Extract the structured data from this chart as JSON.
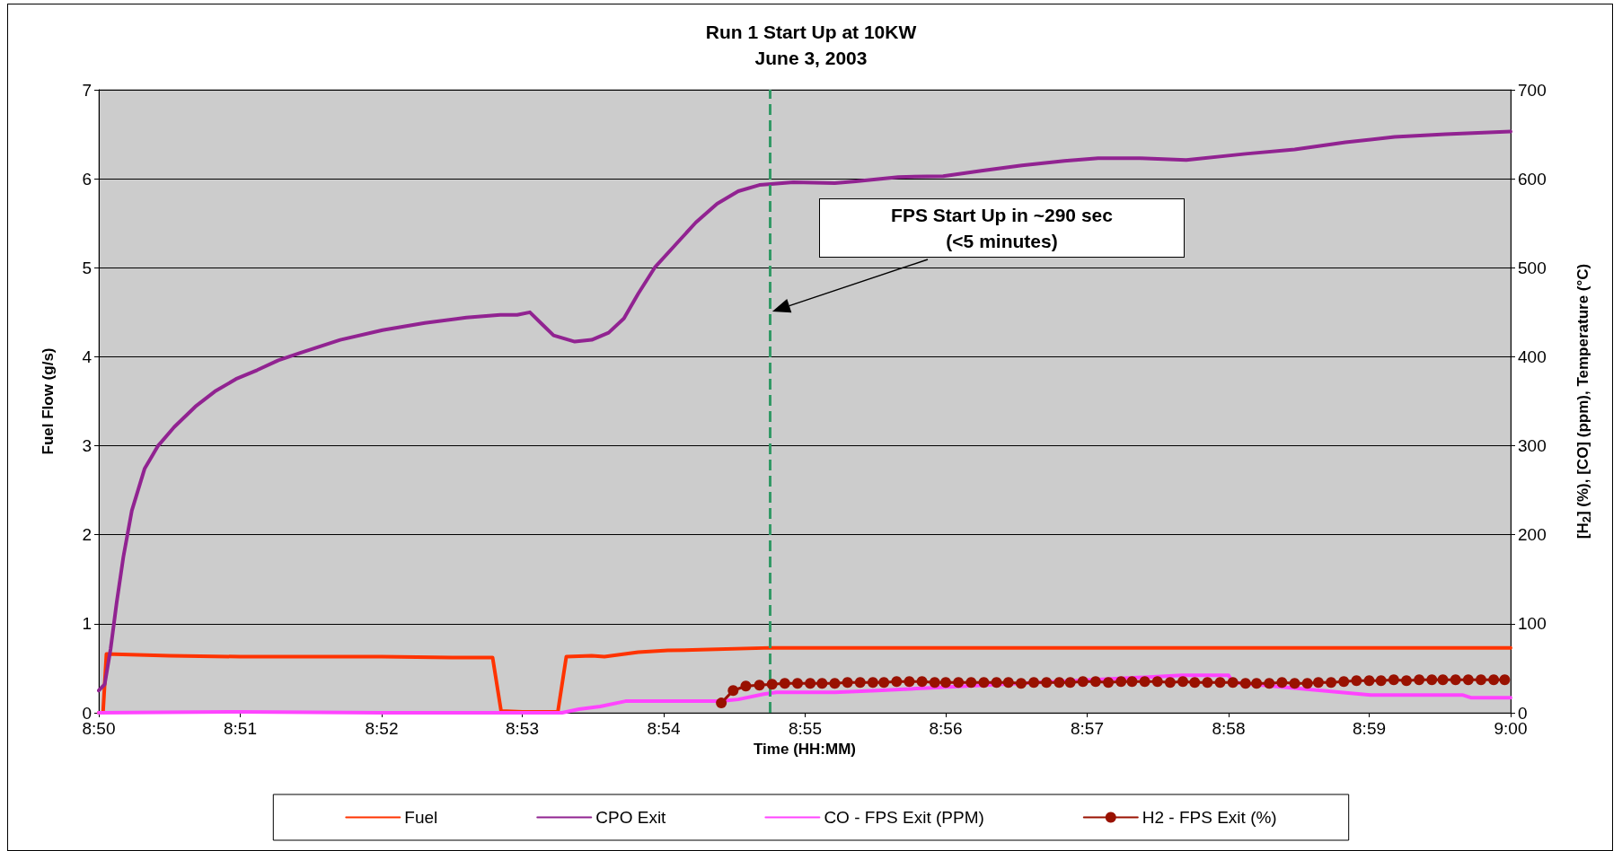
{
  "chart_data": {
    "type": "line",
    "title": "Run 1 Start Up at 10KW",
    "subtitle": "June 3, 2003",
    "xlabel": "Time (HH:MM)",
    "ylabel": "Fuel Flow (g/s)",
    "y2label": "[H$_{2}$] (%), [CO] (ppm), Temperature (°C)",
    "xlim": [
      8.8333,
      9.0
    ],
    "xticks": [
      {
        "value": 8.8333,
        "label": "8:50"
      },
      {
        "value": 8.85,
        "label": "8:51"
      },
      {
        "value": 8.8667,
        "label": "8:52"
      },
      {
        "value": 8.8833,
        "label": "8:53"
      },
      {
        "value": 8.9,
        "label": "8:54"
      },
      {
        "value": 8.9167,
        "label": "8:55"
      },
      {
        "value": 8.9333,
        "label": "8:56"
      },
      {
        "value": 8.95,
        "label": "8:57"
      },
      {
        "value": 8.9667,
        "label": "8:58"
      },
      {
        "value": 8.9833,
        "label": "8:59"
      },
      {
        "value": 9.0,
        "label": "9:00"
      }
    ],
    "ylim": [
      0,
      7
    ],
    "yticks": [
      0,
      1,
      2,
      3,
      4,
      5,
      6,
      7
    ],
    "y2lim": [
      0,
      700
    ],
    "y2ticks": [
      0,
      100,
      200,
      300,
      400,
      500,
      600,
      700
    ],
    "grid": "y",
    "legend": "bottom",
    "marker": "none",
    "line_style": "solid",
    "series": [
      {
        "name": "Fuel",
        "color": "#ff3300",
        "x": [
          8.8333,
          8.8338,
          8.8342,
          8.8417,
          8.85,
          8.8583,
          8.8667,
          8.875,
          8.8798,
          8.8808,
          8.8833,
          8.8875,
          8.8885,
          8.8915,
          8.893,
          8.897,
          8.9005,
          8.9053,
          8.9127,
          8.9333,
          8.9667,
          9.0
        ],
        "values": [
          0,
          0,
          0.66,
          0.64,
          0.63,
          0.63,
          0.63,
          0.62,
          0.62,
          0.02,
          0.01,
          0.01,
          0.63,
          0.64,
          0.63,
          0.68,
          0.7,
          0.71,
          0.73,
          0.73,
          0.73,
          0.73
        ]
      },
      {
        "name": "CPO Exit",
        "color": "#912391",
        "axis": "y2",
        "x": [
          8.8333,
          8.834,
          8.8347,
          8.8354,
          8.8362,
          8.8372,
          8.8387,
          8.8403,
          8.8422,
          8.8447,
          8.847,
          8.8495,
          8.852,
          8.8545,
          8.857,
          8.8618,
          8.8668,
          8.8718,
          8.8767,
          8.8807,
          8.8827,
          8.8842,
          8.8857,
          8.887,
          8.8895,
          8.8915,
          8.8935,
          8.8953,
          8.897,
          8.899,
          8.9015,
          8.9038,
          8.9063,
          8.9088,
          8.9113,
          8.9127,
          8.9153,
          8.9202,
          8.9227,
          8.9277,
          8.933,
          8.9375,
          8.9423,
          8.9473,
          8.9513,
          8.9563,
          8.9617,
          8.9687,
          8.9745,
          8.9805,
          8.9863,
          8.9923,
          9.0
        ],
        "values": [
          25,
          32,
          72,
          123,
          175,
          227,
          274,
          300,
          321,
          344,
          361,
          375,
          385,
          396,
          404,
          419,
          430,
          438,
          444,
          447,
          447,
          450,
          436,
          424,
          417,
          419,
          427,
          443,
          471,
          501,
          527,
          551,
          572,
          586,
          593,
          594,
          596,
          595,
          597,
          602,
          603,
          609,
          615,
          620,
          623,
          623,
          621,
          628,
          633,
          641,
          647,
          650,
          653
        ]
      },
      {
        "name": "CO - FPS Exit (PPM)",
        "color": "#ff44ff",
        "axis": "y2",
        "x": [
          8.8333,
          8.85,
          8.8667,
          8.888,
          8.89,
          8.8925,
          8.8955,
          8.9053,
          8.9068,
          8.9088,
          8.9118,
          8.9133,
          8.9202,
          8.9252,
          8.9612,
          8.9667,
          8.9672,
          8.9835,
          8.9943,
          8.9953,
          9.0
        ],
        "values": [
          0,
          1,
          0,
          0,
          4,
          7,
          13,
          13,
          13,
          15,
          21,
          23,
          23,
          25,
          42,
          42,
          34,
          20,
          20,
          17,
          17
        ]
      },
      {
        "name": "H2 - FPS Exit (%)",
        "color": "#991100",
        "axis": "y2",
        "marker": "circle",
        "x": [
          8.9068,
          8.9082,
          8.9097,
          8.9113,
          8.9128,
          8.9143,
          8.9158,
          8.9173,
          8.9187,
          8.9202,
          8.9217,
          8.9232,
          8.9247,
          8.926,
          8.9275,
          8.929,
          8.9305,
          8.932,
          8.9333,
          8.9348,
          8.9363,
          8.9378,
          8.9393,
          8.9407,
          8.9422,
          8.9437,
          8.9452,
          8.9467,
          8.948,
          8.9495,
          8.951,
          8.9525,
          8.954,
          8.9553,
          8.9568,
          8.9583,
          8.9598,
          8.9613,
          8.9627,
          8.9642,
          8.9657,
          8.9672,
          8.9687,
          8.97,
          8.9715,
          8.973,
          8.9745,
          8.976,
          8.9773,
          8.9788,
          8.9803,
          8.9818,
          8.9833,
          8.9847,
          8.9862,
          8.9877,
          8.9892,
          8.9907,
          8.992,
          8.9935,
          8.995,
          8.9965,
          8.998,
          8.9993
        ],
        "values": [
          11,
          25,
          30,
          31,
          32,
          33,
          33,
          33,
          33,
          33,
          34,
          34,
          34,
          34,
          35,
          35,
          35,
          34,
          34,
          34,
          34,
          34,
          34,
          34,
          33,
          34,
          34,
          34,
          34,
          35,
          35,
          34,
          35,
          35,
          35,
          35,
          34,
          35,
          34,
          34,
          34,
          34,
          33,
          33,
          33,
          34,
          33,
          33,
          34,
          34,
          35,
          36,
          36,
          36,
          37,
          36,
          37,
          37,
          37,
          37,
          37,
          37,
          37,
          37
        ]
      }
    ],
    "ref_lines": [
      {
        "axis": "x",
        "value": 8.9125,
        "color": "#339966",
        "line_style": "dashed"
      }
    ],
    "annotations": [
      "FPS Start Up in ~290 sec\n(<5 minutes)"
    ]
  }
}
